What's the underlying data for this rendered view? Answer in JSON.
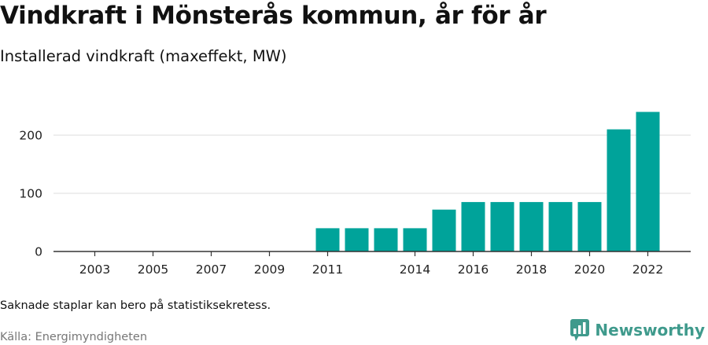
{
  "header": {
    "title": "Vindkraft i Mönsterås kommun, år för år",
    "subtitle": "Installerad vindkraft (maxeffekt, MW)"
  },
  "footer": {
    "note": "Saknade staplar kan bero på statistiksekretess.",
    "source": "Källa: Energimyndigheten",
    "brand": "Newsworthy",
    "brand_icon": "newsworthy-logo-icon"
  },
  "colors": {
    "bar": "#00a39a",
    "grid": "#dddddd",
    "axis": "#333333",
    "brand": "#3f9a8c"
  },
  "chart_data": {
    "type": "bar",
    "categories": [
      "2003",
      "2004",
      "2005",
      "2006",
      "2007",
      "2008",
      "2009",
      "2010",
      "2011",
      "2012",
      "2013",
      "2014",
      "2015",
      "2016",
      "2017",
      "2018",
      "2019",
      "2020",
      "2021",
      "2022"
    ],
    "values": [
      null,
      null,
      null,
      null,
      null,
      null,
      null,
      null,
      40,
      40,
      40,
      40,
      72,
      85,
      85,
      85,
      85,
      85,
      210,
      240
    ],
    "x_tick_labels": [
      "2003",
      "2005",
      "2007",
      "2009",
      "2011",
      "2014",
      "2016",
      "2018",
      "2020",
      "2022"
    ],
    "y_ticks": [
      0,
      100,
      200
    ],
    "ylim": [
      0,
      260
    ],
    "grid": true,
    "legend": "none",
    "title": "Vindkraft i Mönsterås kommun, år för år",
    "subtitle": "Installerad vindkraft (maxeffekt, MW)"
  }
}
